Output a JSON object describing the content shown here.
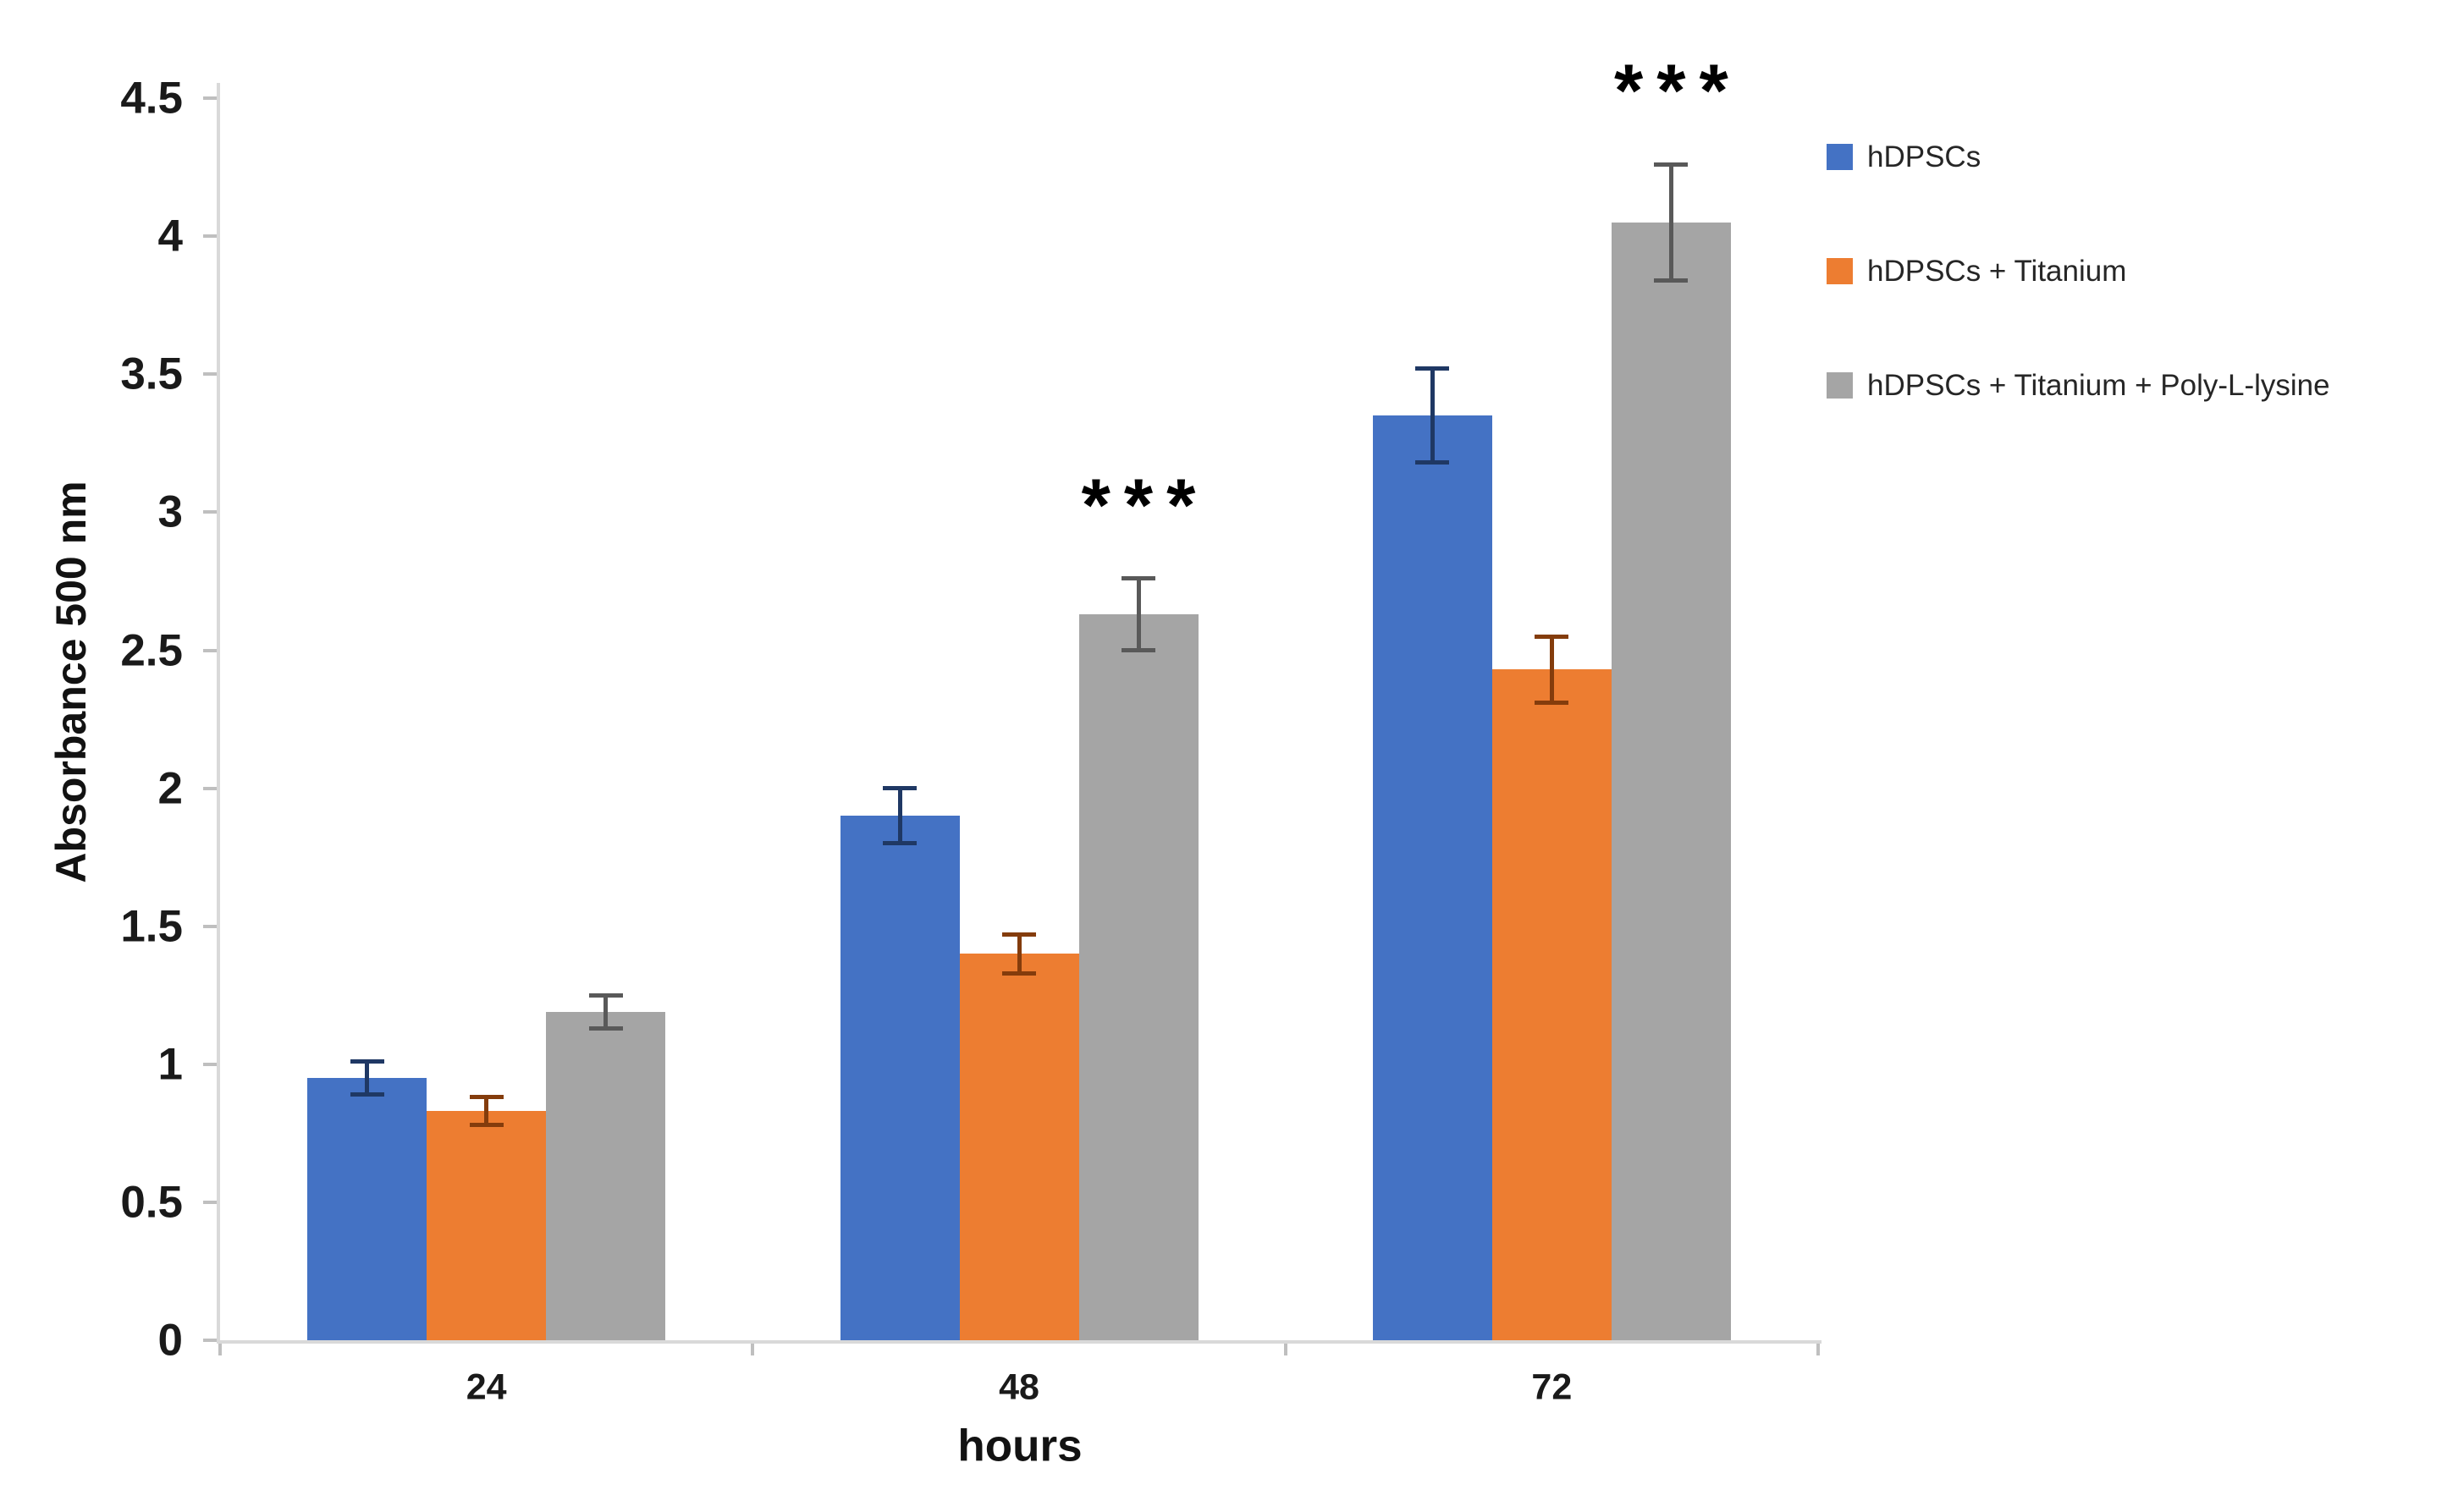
{
  "chart_data": {
    "type": "bar",
    "title": "",
    "xlabel": "hours",
    "ylabel": "Absorbance 500 nm",
    "categories": [
      "24",
      "48",
      "72"
    ],
    "ylim": [
      0,
      4.5
    ],
    "ytick_step": 0.5,
    "ytick_labels": [
      "0",
      "0.5",
      "1",
      "1.5",
      "2",
      "2.5",
      "3",
      "3.5",
      "4",
      "4.5"
    ],
    "grid": false,
    "legend_position": "right",
    "axis_color": "#d9d9d9",
    "tick_color": "#bfbfbf",
    "annotation_color": "#000000",
    "series": [
      {
        "name": "hDPSCs",
        "color": "#4472C4",
        "error_color": "#1F3864",
        "values": [
          0.95,
          1.9,
          3.35
        ],
        "errors": [
          0.06,
          0.1,
          0.17
        ]
      },
      {
        "name": "hDPSCs + Titanium",
        "color": "#ED7D31",
        "error_color": "#843C0C",
        "values": [
          0.83,
          1.4,
          2.43
        ],
        "errors": [
          0.05,
          0.07,
          0.12
        ]
      },
      {
        "name": "hDPSCs + Titanium + Poly-L-lysine",
        "color": "#A5A5A5",
        "error_color": "#595959",
        "values": [
          1.19,
          2.63,
          4.05
        ],
        "errors": [
          0.06,
          0.13,
          0.21
        ]
      }
    ],
    "annotations": [
      {
        "text": "***",
        "category": "48",
        "series_index": 2
      },
      {
        "text": "***",
        "category": "72",
        "series_index": 2
      }
    ]
  }
}
